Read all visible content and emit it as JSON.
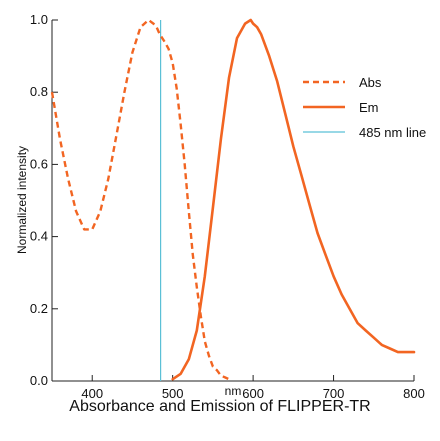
{
  "chart_data": {
    "type": "line",
    "title": "Absorbance and Emission of FLIPPER-TR",
    "xlabel": "nm",
    "ylabel": "Normalized  intensity",
    "xlim": [
      350,
      800
    ],
    "ylim": [
      0,
      1.0
    ],
    "xticks": [
      400,
      500,
      600,
      700,
      800
    ],
    "yticks": [
      0.0,
      0.2,
      0.4,
      0.6,
      0.8,
      1.0
    ],
    "grid": false,
    "legend_position": "top-right",
    "colors": {
      "abs": "#f26522",
      "em": "#f26522",
      "line485": "#5bc0d6"
    },
    "series": [
      {
        "name": "Abs",
        "style": "dashed",
        "x": [
          350,
          360,
          370,
          380,
          390,
          400,
          410,
          420,
          430,
          440,
          450,
          460,
          470,
          476,
          480,
          484,
          490,
          495,
          500,
          505,
          510,
          515,
          520,
          525,
          530,
          535,
          540,
          545,
          550,
          555,
          560,
          565,
          570
        ],
        "y": [
          0.8,
          0.67,
          0.56,
          0.47,
          0.42,
          0.42,
          0.47,
          0.56,
          0.68,
          0.8,
          0.91,
          0.98,
          1.0,
          0.99,
          0.98,
          0.96,
          0.94,
          0.92,
          0.88,
          0.81,
          0.71,
          0.6,
          0.47,
          0.35,
          0.26,
          0.18,
          0.11,
          0.07,
          0.04,
          0.03,
          0.015,
          0.01,
          0.005
        ]
      },
      {
        "name": "Em",
        "style": "solid",
        "x": [
          500,
          510,
          520,
          530,
          540,
          550,
          560,
          570,
          580,
          590,
          597,
          600,
          605,
          610,
          620,
          630,
          640,
          650,
          660,
          670,
          680,
          690,
          700,
          710,
          720,
          730,
          740,
          750,
          760,
          770,
          780,
          790,
          800
        ],
        "y": [
          0.005,
          0.02,
          0.06,
          0.14,
          0.29,
          0.48,
          0.67,
          0.84,
          0.95,
          0.99,
          1.0,
          0.99,
          0.98,
          0.96,
          0.9,
          0.83,
          0.74,
          0.65,
          0.57,
          0.49,
          0.41,
          0.35,
          0.29,
          0.24,
          0.2,
          0.16,
          0.14,
          0.12,
          0.1,
          0.09,
          0.08,
          0.08,
          0.08
        ]
      },
      {
        "name": "485 nm line",
        "style": "vertical",
        "x": [
          485,
          485
        ],
        "y": [
          0,
          1.0
        ]
      }
    ]
  }
}
